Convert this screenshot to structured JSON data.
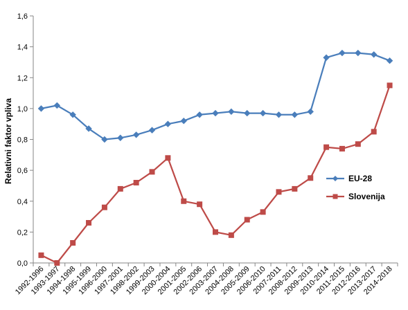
{
  "chart_data": {
    "type": "line",
    "title": "",
    "xlabel": "",
    "ylabel": "Relativni faktor vpliva",
    "ylim": [
      0,
      1.6
    ],
    "yticks": [
      "0,0",
      "0,2",
      "0,4",
      "0,6",
      "0,8",
      "1,0",
      "1,2",
      "1,4",
      "1,6"
    ],
    "categories": [
      "1992-1996",
      "1993-1997",
      "1994-1998",
      "1995-1999",
      "1996-2000",
      "1997-2001",
      "1998-2002",
      "1999-2003",
      "2000-2004",
      "2001-2005",
      "2002-2006",
      "2003-2007",
      "2004-2008",
      "2005-2009",
      "2006-2010",
      "2007-2011",
      "2008-2012",
      "2009-2013",
      "2010-2014",
      "2011-2015",
      "2012-2016",
      "2013-2017",
      "2014-2018"
    ],
    "grid": false,
    "legend_position": "right",
    "series": [
      {
        "name": "EU-28",
        "color": "#4a7ebb",
        "marker": "diamond",
        "values": [
          1.0,
          1.02,
          0.96,
          0.87,
          0.8,
          0.81,
          0.83,
          0.86,
          0.9,
          0.92,
          0.96,
          0.97,
          0.98,
          0.97,
          0.97,
          0.96,
          0.96,
          0.98,
          1.33,
          1.36,
          1.36,
          1.35,
          1.31
        ]
      },
      {
        "name": "Slovenija",
        "color": "#be4b48",
        "marker": "square",
        "values": [
          0.05,
          0.0,
          0.13,
          0.26,
          0.36,
          0.48,
          0.52,
          0.59,
          0.68,
          0.4,
          0.38,
          0.2,
          0.18,
          0.28,
          0.33,
          0.46,
          0.48,
          0.55,
          0.75,
          0.74,
          0.77,
          0.85,
          1.15
        ]
      }
    ]
  }
}
